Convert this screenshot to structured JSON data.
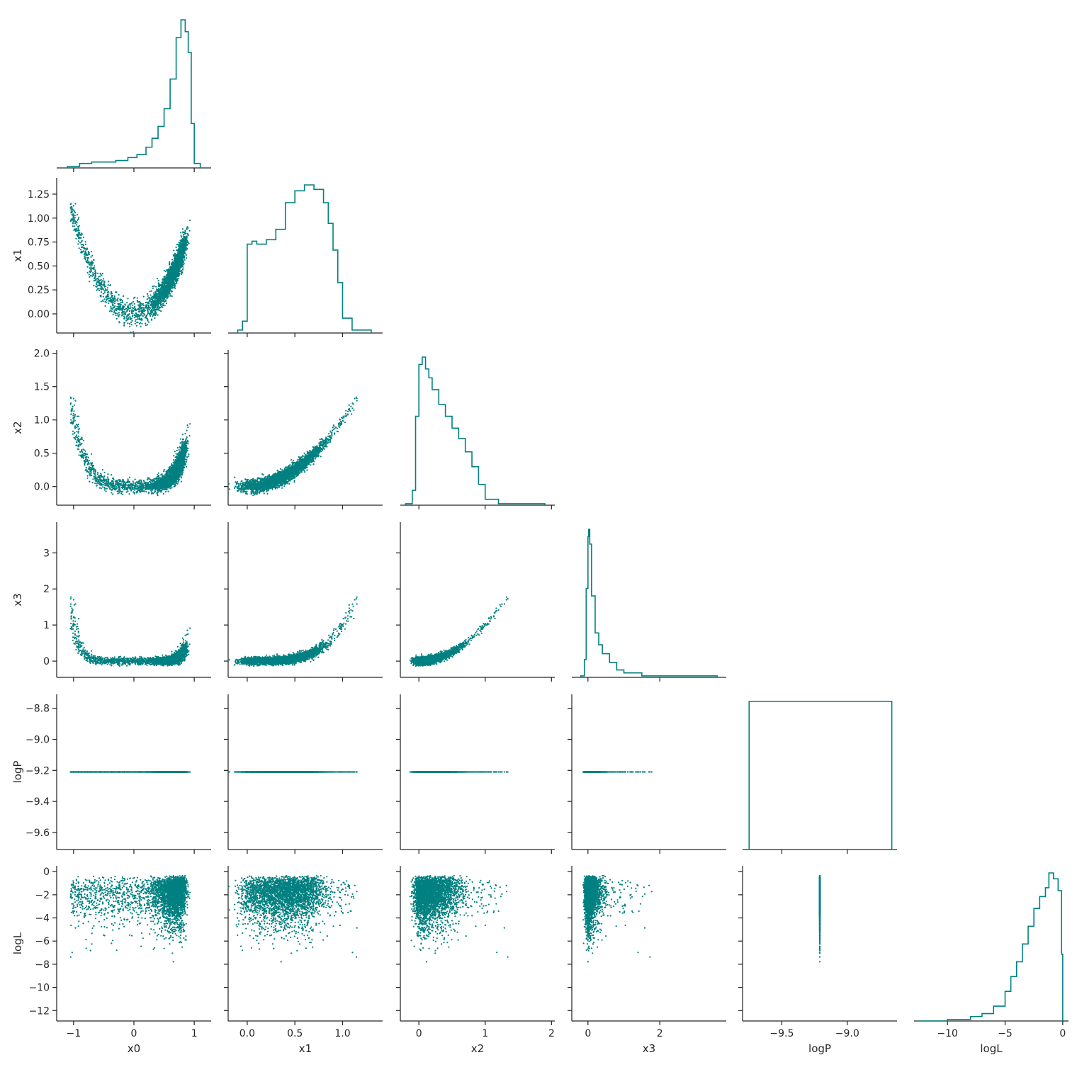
{
  "chart_data": {
    "type": "pairplot",
    "corner": true,
    "color": "#008080",
    "variables": [
      {
        "name": "x0",
        "label": "x0",
        "ticks": [
          -1,
          0,
          1
        ],
        "tick_labels": [
          "−1",
          "0",
          "1"
        ],
        "range": [
          -1.28,
          1.28
        ]
      },
      {
        "name": "x1",
        "label": "x1",
        "ticks": [
          0.0,
          0.25,
          0.5,
          0.75,
          1.0,
          1.25
        ],
        "tick_labels": [
          "0.00",
          "0.25",
          "0.50",
          "0.75",
          "1.00",
          "1.25"
        ],
        "x_ticks": [
          0.0,
          0.5,
          1.0
        ],
        "x_tick_labels": [
          "0.0",
          "0.5",
          "1.0"
        ],
        "range": [
          -0.2,
          1.42
        ]
      },
      {
        "name": "x2",
        "label": "x2",
        "ticks": [
          0.0,
          0.5,
          1.0,
          1.5,
          2.0
        ],
        "tick_labels": [
          "0.0",
          "0.5",
          "1.0",
          "1.5",
          "2.0"
        ],
        "x_ticks": [
          0,
          1,
          2
        ],
        "x_tick_labels": [
          "0",
          "1",
          "2"
        ],
        "range": [
          -0.28,
          2.05
        ]
      },
      {
        "name": "x3",
        "label": "x3",
        "ticks": [
          0,
          1,
          2,
          3
        ],
        "tick_labels": [
          "0",
          "1",
          "2",
          "3"
        ],
        "x_ticks": [
          0,
          2
        ],
        "x_tick_labels": [
          "0",
          "2"
        ],
        "range": [
          -0.45,
          3.85
        ]
      },
      {
        "name": "logP",
        "label": "logP",
        "ticks": [
          -9.6,
          -9.4,
          -9.2,
          -9.0,
          -8.8
        ],
        "tick_labels": [
          "−9.6",
          "−9.4",
          "−9.2",
          "−9.0",
          "−8.8"
        ],
        "x_ticks": [
          -9.5,
          -9.0
        ],
        "x_tick_labels": [
          "−9.5",
          "−9.0"
        ],
        "range": [
          -9.71,
          -8.71
        ],
        "x_range": [
          -9.8,
          -8.62
        ]
      },
      {
        "name": "logL",
        "label": "logL",
        "ticks": [
          -12,
          -10,
          -8,
          -6,
          -4,
          -2,
          0
        ],
        "tick_labels": [
          "−12",
          "−10",
          "−8",
          "−6",
          "−4",
          "−2",
          "0"
        ],
        "x_ticks": [
          -10,
          -5,
          0
        ],
        "x_tick_labels": [
          "−10",
          "−5",
          "0"
        ],
        "range": [
          -12.9,
          0.5
        ],
        "x_range": [
          -12.9,
          0.5
        ]
      }
    ],
    "histograms": {
      "x0": {
        "x": [
          -1.1,
          -0.9,
          -0.7,
          -0.5,
          -0.3,
          -0.1,
          0.05,
          0.2,
          0.3,
          0.4,
          0.5,
          0.6,
          0.7,
          0.78,
          0.85,
          0.9,
          0.95,
          1.0,
          1.1
        ],
        "y": [
          1,
          3,
          4,
          4,
          5,
          7,
          9,
          14,
          20,
          28,
          40,
          60,
          88,
          100,
          92,
          78,
          30,
          3,
          0
        ]
      },
      "x1": {
        "x": [
          -0.1,
          -0.05,
          0.0,
          0.05,
          0.1,
          0.2,
          0.3,
          0.4,
          0.5,
          0.6,
          0.7,
          0.8,
          0.85,
          0.9,
          0.95,
          1.0,
          1.1,
          1.3
        ],
        "y": [
          2,
          8,
          60,
          62,
          60,
          63,
          70,
          88,
          96,
          100,
          97,
          88,
          74,
          56,
          34,
          10,
          2,
          1
        ]
      },
      "x2": {
        "x": [
          -0.2,
          -0.1,
          -0.05,
          0.0,
          0.05,
          0.1,
          0.15,
          0.2,
          0.3,
          0.4,
          0.5,
          0.6,
          0.7,
          0.8,
          0.9,
          1.0,
          1.2,
          1.6,
          1.9
        ],
        "y": [
          1,
          10,
          60,
          95,
          100,
          92,
          86,
          78,
          68,
          60,
          52,
          45,
          36,
          26,
          14,
          4,
          1,
          1,
          0
        ]
      },
      "x3": {
        "x": [
          -0.2,
          -0.1,
          -0.05,
          0.0,
          0.02,
          0.05,
          0.1,
          0.2,
          0.3,
          0.4,
          0.6,
          0.8,
          1.0,
          1.5,
          2.0,
          3.0,
          3.6
        ],
        "y": [
          1,
          12,
          60,
          95,
          100,
          90,
          55,
          30,
          22,
          16,
          10,
          5,
          3,
          1,
          1,
          1,
          0
        ]
      },
      "logP": {
        "x": [
          -9.75,
          -8.66
        ],
        "y": [
          100,
          100
        ]
      },
      "logL": {
        "x": [
          -12.5,
          -10,
          -8,
          -7,
          -6,
          -5,
          -4.5,
          -4,
          -3.5,
          -3,
          -2.5,
          -2,
          -1.5,
          -1.2,
          -0.8,
          -0.4,
          -0.1,
          0.0
        ],
        "y": [
          0,
          1,
          3,
          5,
          10,
          20,
          30,
          40,
          52,
          64,
          76,
          84,
          90,
          100,
          96,
          88,
          45,
          0
        ]
      }
    },
    "grid": false,
    "legend": "none"
  }
}
